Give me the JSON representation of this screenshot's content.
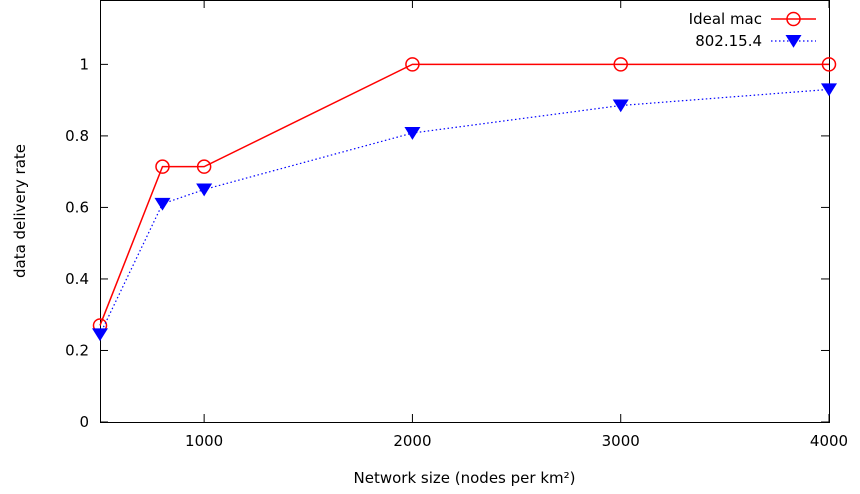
{
  "chart_data": {
    "type": "line",
    "title": "",
    "xlabel": "Network size (nodes per km²)",
    "ylabel": "data delivery rate",
    "xlim": [
      500,
      4000
    ],
    "ylim": [
      0,
      1.18
    ],
    "x_ticks": [
      1000,
      2000,
      3000,
      4000
    ],
    "x_tick_labels": [
      "1000",
      "2000",
      "3000",
      "4000"
    ],
    "y_ticks": [
      0,
      0.2,
      0.4,
      0.6,
      0.8,
      1
    ],
    "y_tick_labels": [
      "0",
      "0.2",
      "0.4",
      "0.6",
      "0.8",
      "1"
    ],
    "grid": false,
    "legend_position": "top-right",
    "series": [
      {
        "name": "Ideal mac",
        "color": "#ff0000",
        "line_style": "solid",
        "marker": "open-circle",
        "x": [
          500,
          800,
          1000,
          2000,
          3000,
          4000
        ],
        "y": [
          0.27,
          0.714,
          0.714,
          1.0,
          1.0,
          1.0
        ]
      },
      {
        "name": "802.15.4",
        "color": "#0000ff",
        "line_style": "dotted",
        "marker": "filled-down-triangle",
        "x": [
          500,
          800,
          1000,
          2000,
          3000,
          4000
        ],
        "y": [
          0.245,
          0.61,
          0.65,
          0.808,
          0.885,
          0.93
        ]
      }
    ]
  }
}
